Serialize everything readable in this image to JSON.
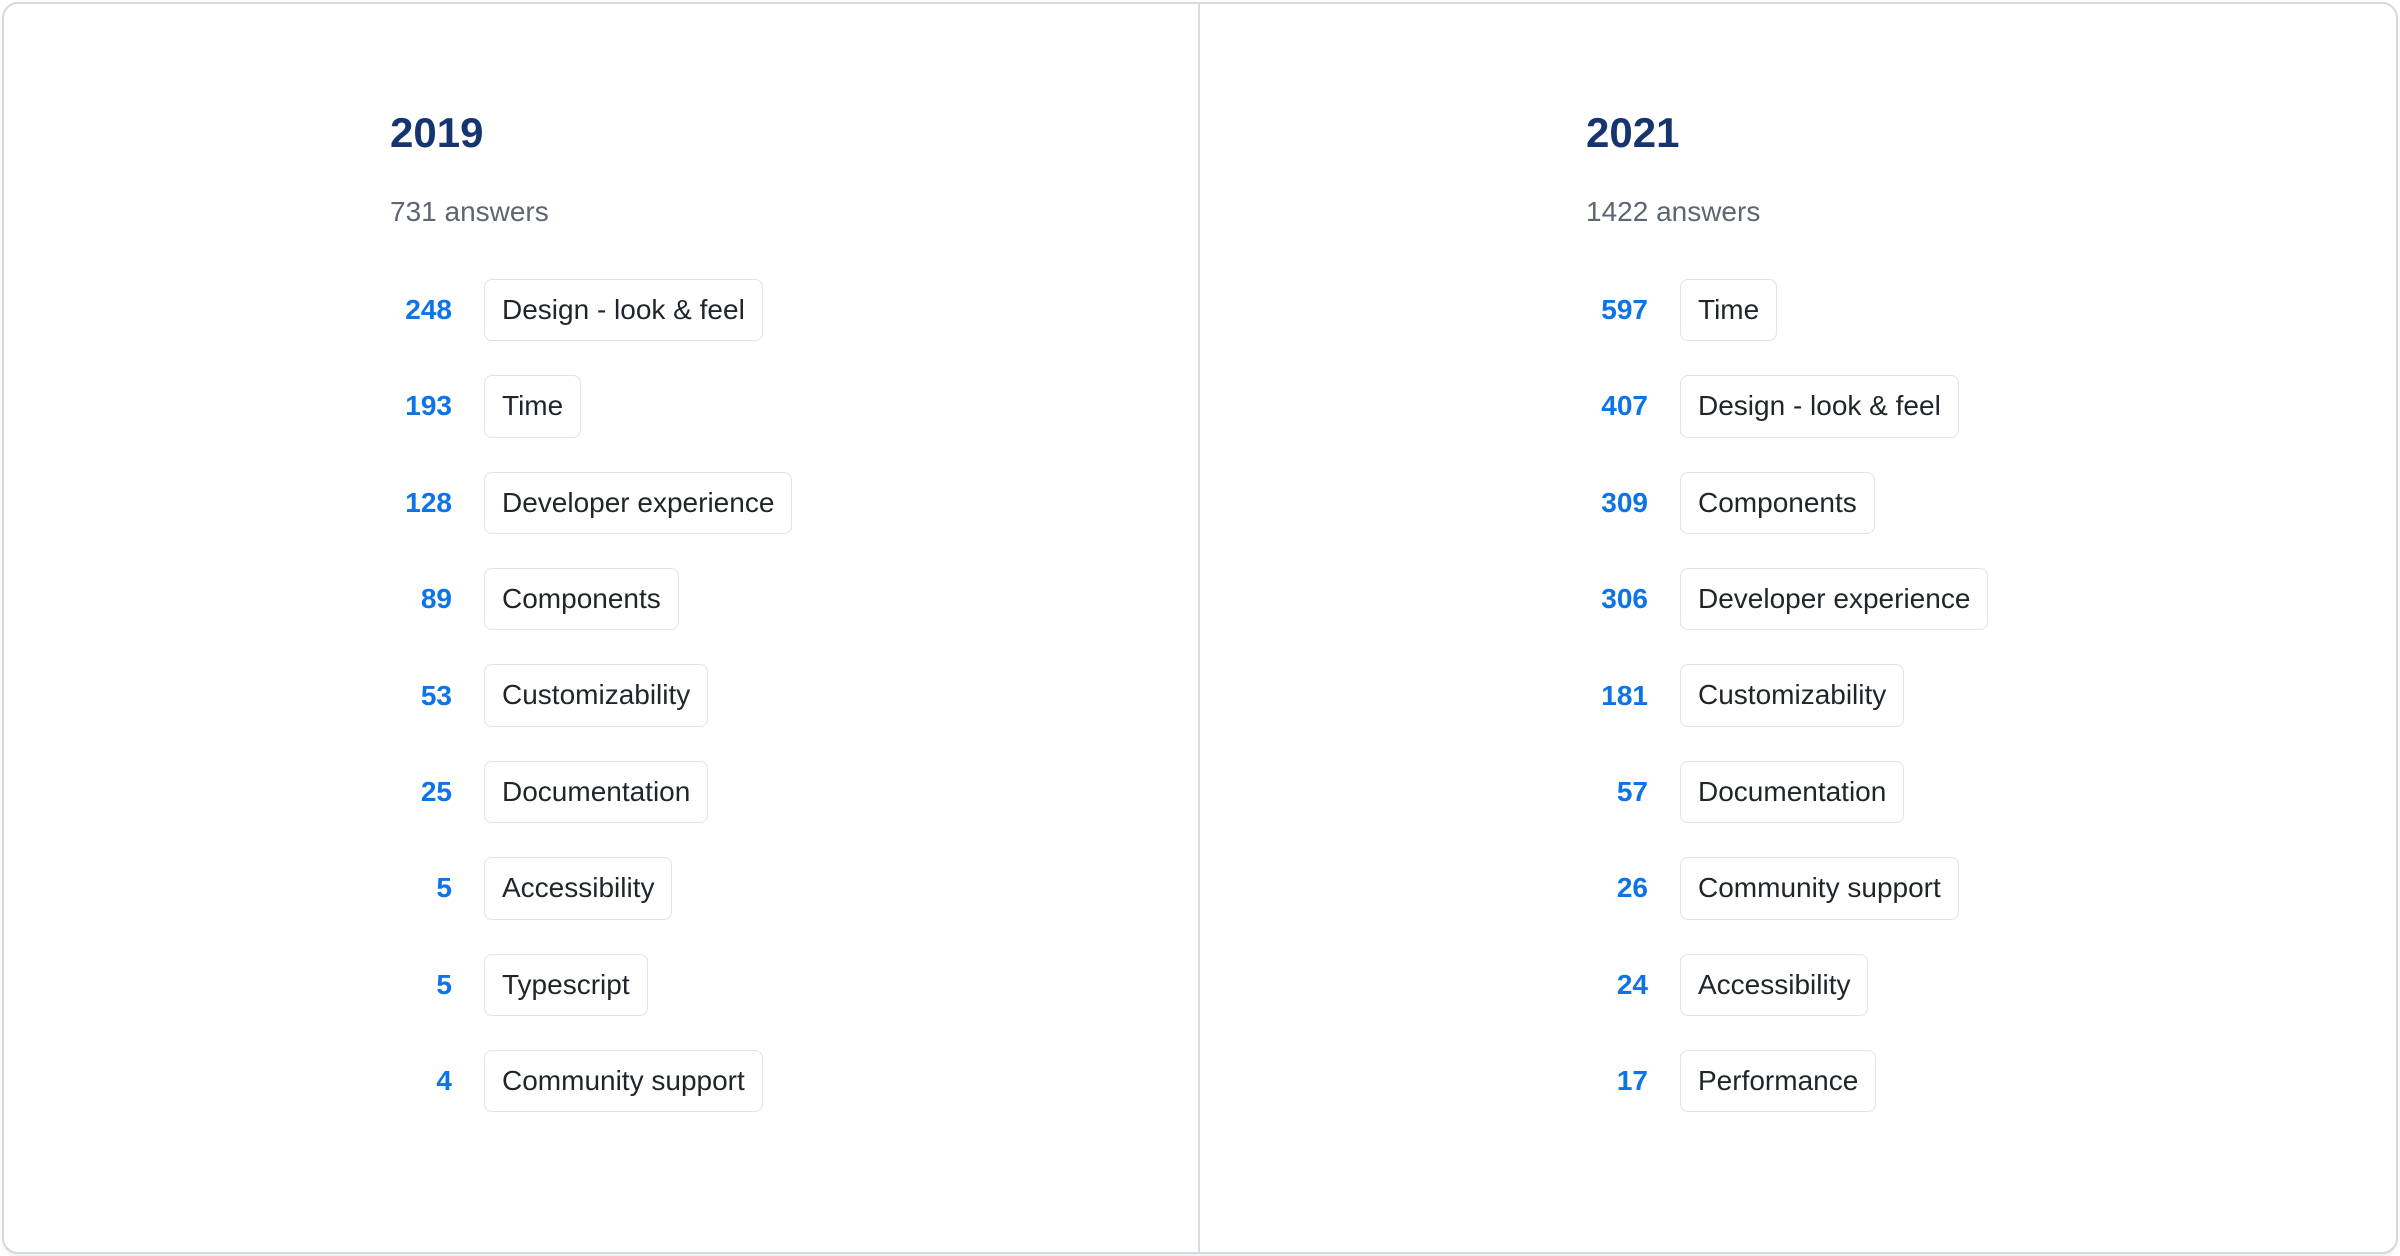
{
  "colors": {
    "year_heading": "#16356e",
    "count_blue": "#0d74e8",
    "subtitle_gray": "#5c6671",
    "chip_text": "#1f252b",
    "chip_border": "#dfe3e8",
    "card_border": "#d5dade",
    "divider": "#d9dde2"
  },
  "columns": [
    {
      "year": "2019",
      "answers_label": "731 answers",
      "items": [
        {
          "count": "248",
          "label": "Design - look & feel"
        },
        {
          "count": "193",
          "label": "Time"
        },
        {
          "count": "128",
          "label": "Developer experience"
        },
        {
          "count": "89",
          "label": "Components"
        },
        {
          "count": "53",
          "label": "Customizability"
        },
        {
          "count": "25",
          "label": "Documentation"
        },
        {
          "count": "5",
          "label": "Accessibility"
        },
        {
          "count": "5",
          "label": "Typescript"
        },
        {
          "count": "4",
          "label": "Community support"
        }
      ]
    },
    {
      "year": "2021",
      "answers_label": "1422 answers",
      "items": [
        {
          "count": "597",
          "label": "Time"
        },
        {
          "count": "407",
          "label": "Design - look & feel"
        },
        {
          "count": "309",
          "label": "Components"
        },
        {
          "count": "306",
          "label": "Developer experience"
        },
        {
          "count": "181",
          "label": "Customizability"
        },
        {
          "count": "57",
          "label": "Documentation"
        },
        {
          "count": "26",
          "label": "Community support"
        },
        {
          "count": "24",
          "label": "Accessibility"
        },
        {
          "count": "17",
          "label": "Performance"
        }
      ]
    }
  ],
  "chart_data": [
    {
      "type": "table",
      "title": "2019",
      "subtitle": "731 answers",
      "categories": [
        "Design - look & feel",
        "Time",
        "Developer experience",
        "Components",
        "Customizability",
        "Documentation",
        "Accessibility",
        "Typescript",
        "Community support"
      ],
      "values": [
        248,
        193,
        128,
        89,
        53,
        25,
        5,
        5,
        4
      ]
    },
    {
      "type": "table",
      "title": "2021",
      "subtitle": "1422 answers",
      "categories": [
        "Time",
        "Design - look & feel",
        "Components",
        "Developer experience",
        "Customizability",
        "Documentation",
        "Community support",
        "Accessibility",
        "Performance"
      ],
      "values": [
        597,
        407,
        309,
        306,
        181,
        57,
        26,
        24,
        17
      ]
    }
  ]
}
